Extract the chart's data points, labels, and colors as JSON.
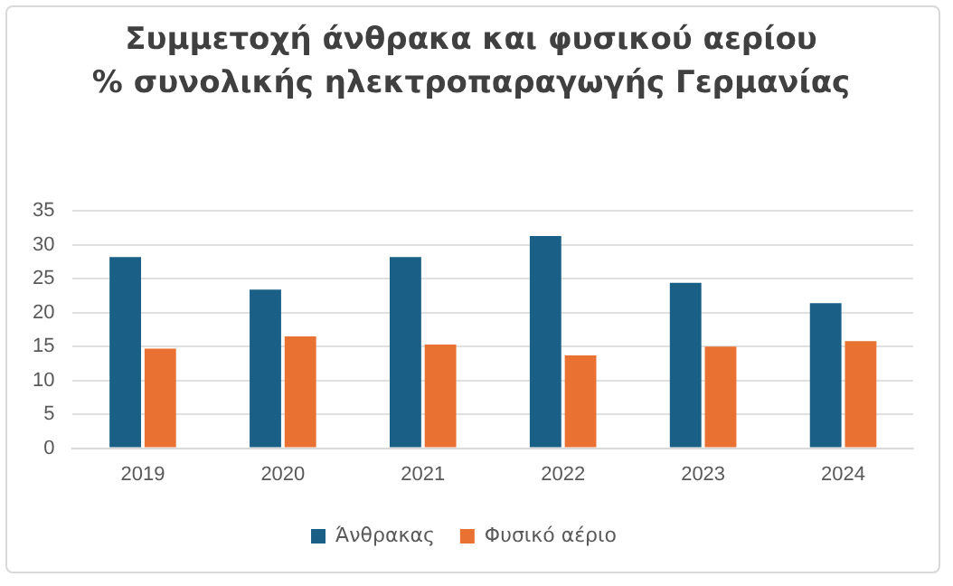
{
  "chart_data": {
    "type": "bar",
    "title": "Συμμετοχή άνθρακα και φυσικού αερίου\n% συνολικής ηλεκτροπαραγωγής Γερμανίας",
    "categories": [
      "2019",
      "2020",
      "2021",
      "2022",
      "2023",
      "2024"
    ],
    "series": [
      {
        "name": "Άνθρακας",
        "color": "#1a5f85",
        "values": [
          28.2,
          23.4,
          28.2,
          31.3,
          24.4,
          21.4
        ]
      },
      {
        "name": "Φυσικό αέριο",
        "color": "#e97132",
        "values": [
          14.7,
          16.5,
          15.3,
          13.7,
          15.0,
          15.8
        ]
      }
    ],
    "ylim": [
      0,
      35
    ],
    "yticks": [
      0,
      5,
      10,
      15,
      20,
      25,
      30,
      35
    ],
    "grid": "y",
    "legend": "bottom"
  }
}
